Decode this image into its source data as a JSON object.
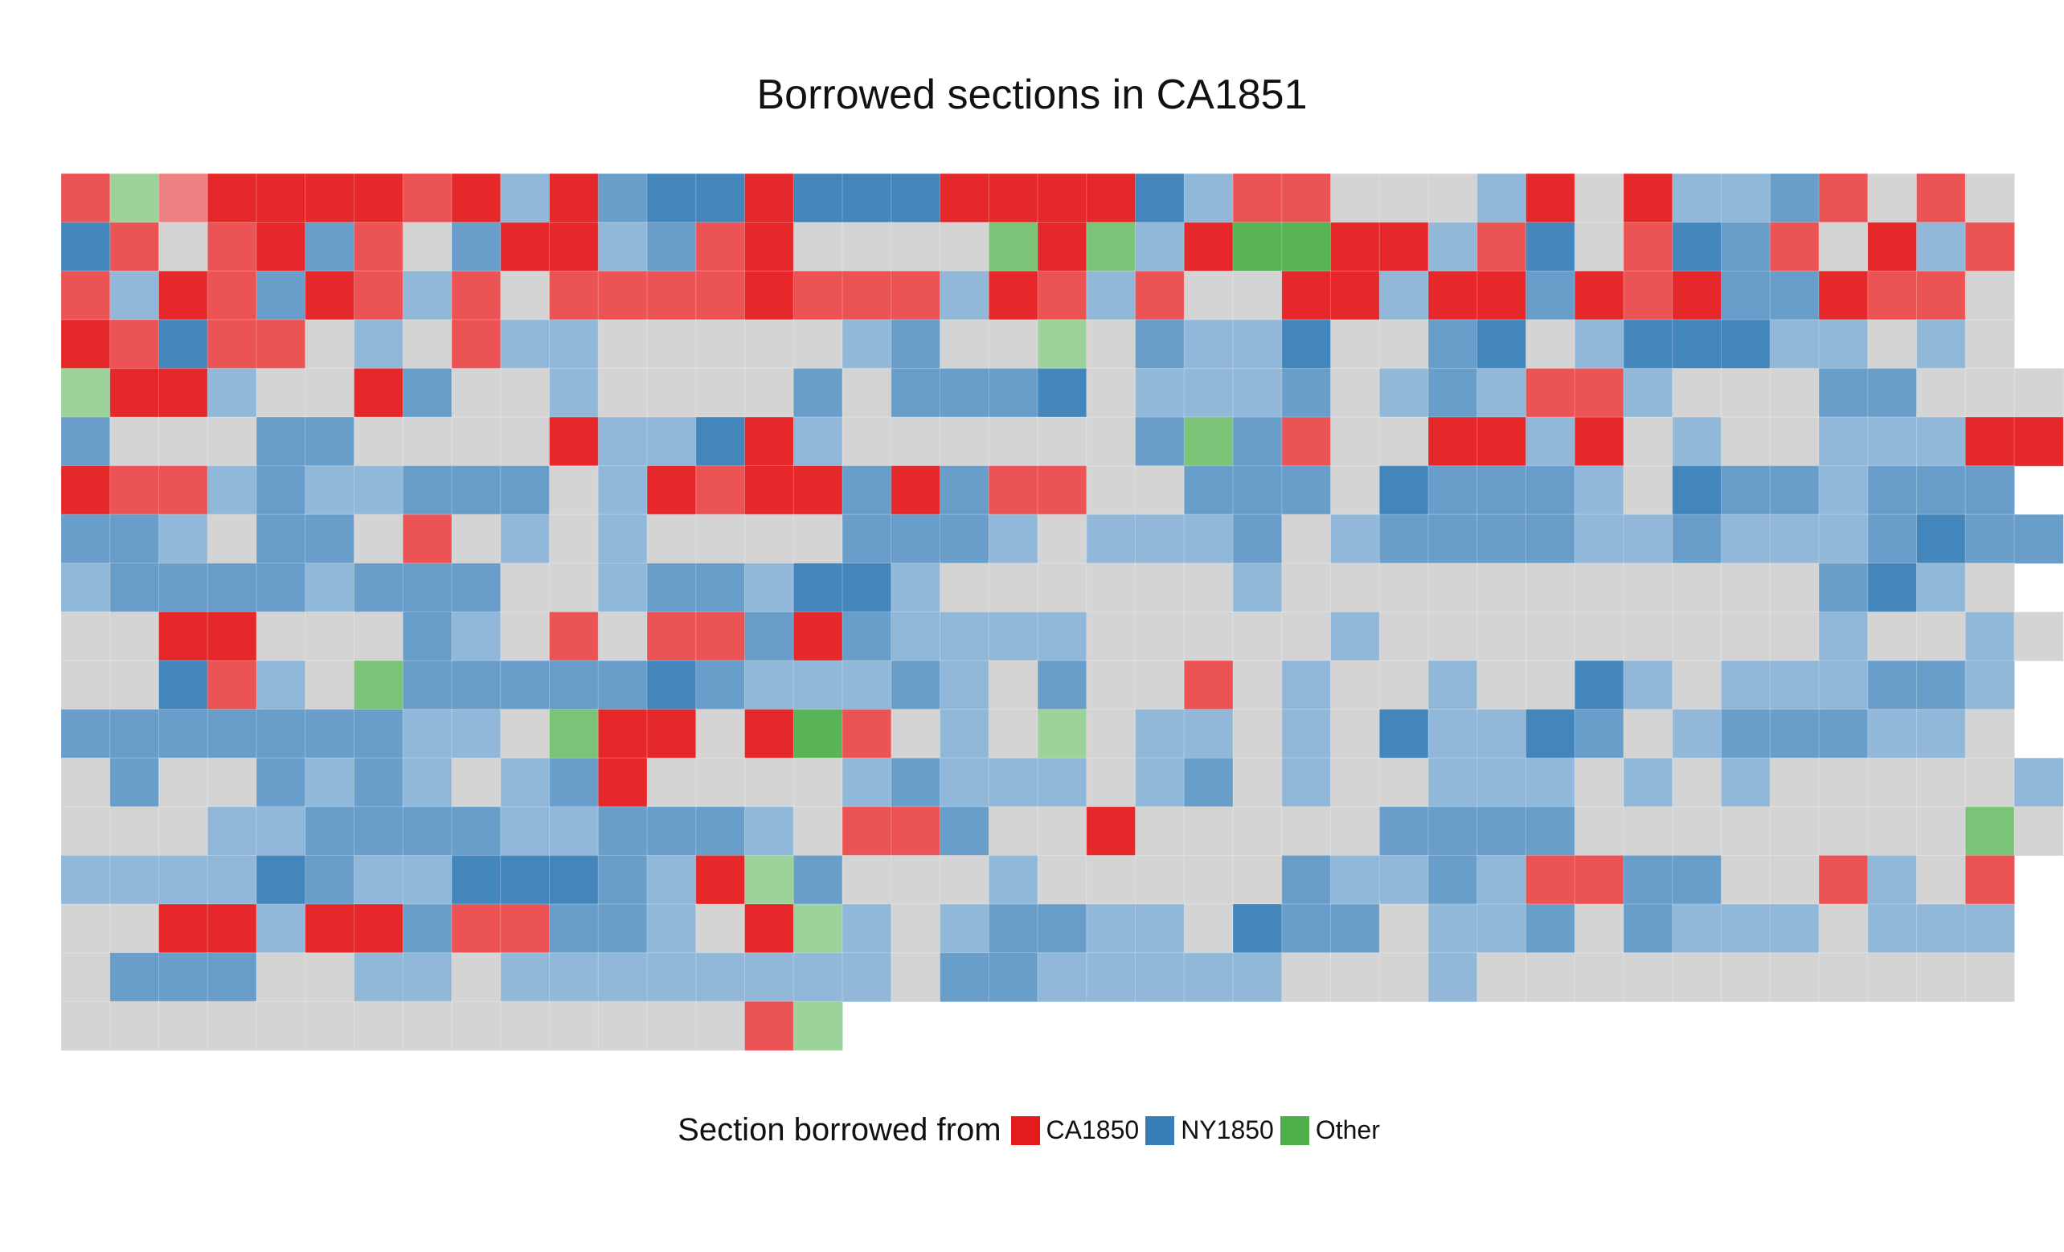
{
  "chart_data": {
    "type": "heatmap",
    "title": "Borrowed sections in CA1851",
    "legend": {
      "title": "Section borrowed from",
      "position": "bottom",
      "entries": [
        {
          "label": "CA1850",
          "color": "#e41a1c"
        },
        {
          "label": "NY1850",
          "color": "#377eb8"
        },
        {
          "label": "Other",
          "color": "#4daf4a"
        }
      ]
    },
    "unmatched_color": "#d4d4d4",
    "columns": 40,
    "rows": 18,
    "cell_encoding": "source code (C = CA1850, N = NY1850, O = Other, . = none) followed by strength 1-3",
    "grid": [
      "C2O1C1C3C3C3C3C2C3N1C3N2N3N3C3N3N3N3C3C3C3C3N3N1C2C2. . . N1C3. C3N1N1N2C2. C2. ",
      "N3C2. C2C3N2C2. N2C3C3N1N2C2C3. . . . O2C3O2N1C3O3O3C3C3N1C2N3. C2N3N2C2. C3N1C2",
      "C2N1C3C2N2C3C2N1C2. C2C2C2C2C3C2C2C2N1C3C2N1C2. . C3C3N1C3C3N2C3C2C3N2N2C3C2C2. ",
      "C3C2N3C2C2. N1. C2N1N1. . . . . N1N2. . O1. N2N1N1N3. . N2N3. N1N3N3N3N1N1. N1. ",
      "O1C3C3N1. . C3N2. . N1. . . . N2. N2N2N2N3. N1N1N1N2. N1N2N1C2C2N1. . . N2N2. . . . ",
      "N2. . . N2N2. . . . C3N1N1N3C3N1. . . . . . N2O2N2C2. . C3C3N1C3. N1. . N1N1N1C3C3",
      "C3C2C2N1N2N1N1N2N2N2. N1C3C2C3C3N2C3N2C2C2. . N2N2N2. N3N2N2N2N1. N3N2N2N1N2N2N2",
      "N2N2N1. N2N2. C2. N1. N1. . . . N2N2N2N1. N1N1N1N2. N1N2N2N2N2N1N1N2N1N1N1N2N3N2N2",
      "N1N2N2N2N2N1N2N2N2. . N1N2N2N1N3N3N1. . . . . . N1. . . . . . . . . . . N2N3N1. ",
      ". . C3C3. . . N2N1. C2. C2C2N2C3N2N1N1N1N1. . . . . N1. . . . . . . . . N1. . N1. ",
      ". . N3C2N1. O2N2N2N2N2N2N3N2N1N1N1N2N1. N2. . C2. N1. . N1. . N3N1. N1N1N1N2N2N1",
      "N2N2N2N2N2N2N2N1N1. O2C3C3. C3O3C2. N1. O1. N1N1. N1. N3N1N1N3N2. N1N2N2N2N1N1. ",
      ". N2. . N2N1N2N1. N1N2C3. . . . N1N2N1N1N1. N1N2. N1. . N1N1N1. N1. N1. . . . . N1",
      ". . . N1N1N2N2N2N2N1N1N2N2N2N1. C2C2N2. . C3. . . . . N2N2N2N2. . . . . . . . O2. ",
      "N1N1N1N1N3N2N1N1N3N3N3N2N1C3O1N2. . . N1. . . . . N2N1N1N2N1C2C2N2N2. . C2N1. C2",
      ". . C3C3N1C3C3N2C2C2N2N2N1. C3O1N1. N1N2N2N1N1. N3N2N2. N1N1N2. N2N1N1N1. N1N1N1",
      ". N2N2N2. . N1N1. N1N1N1N1N1N1N1N1. N2N2N1N1N1N1N1. . . N1. . . . . . . . . . . ",
      ". . . . . . . . . . . . . . C2O1"
    ]
  }
}
